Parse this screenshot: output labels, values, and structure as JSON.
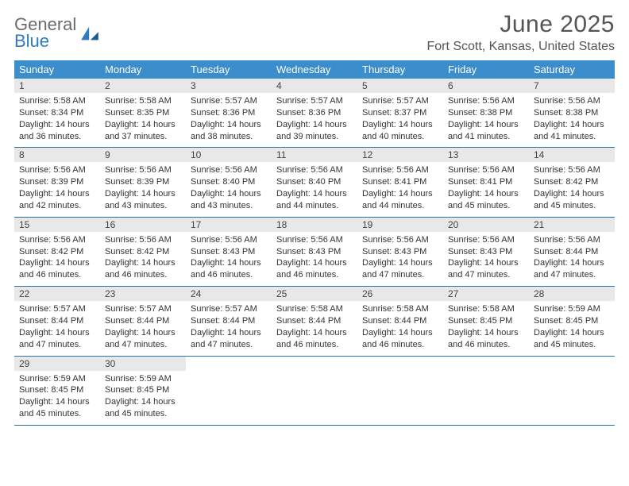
{
  "brand": {
    "general": "General",
    "blue": "Blue"
  },
  "header": {
    "month": "June 2025",
    "location": "Fort Scott, Kansas, United States"
  },
  "colors": {
    "header_bg": "#3c8dcc",
    "header_text": "#ffffff",
    "daynum_bg": "#e8e8e8",
    "rule": "#2f6fa8",
    "logo_blue": "#2f7bbf",
    "logo_gray": "#6b6b6b",
    "text": "#333333"
  },
  "weekdays": [
    "Sunday",
    "Monday",
    "Tuesday",
    "Wednesday",
    "Thursday",
    "Friday",
    "Saturday"
  ],
  "weeks": [
    {
      "nums": [
        "1",
        "2",
        "3",
        "4",
        "5",
        "6",
        "7"
      ],
      "cells": [
        {
          "sunrise": "Sunrise: 5:58 AM",
          "sunset": "Sunset: 8:34 PM",
          "day1": "Daylight: 14 hours",
          "day2": "and 36 minutes."
        },
        {
          "sunrise": "Sunrise: 5:58 AM",
          "sunset": "Sunset: 8:35 PM",
          "day1": "Daylight: 14 hours",
          "day2": "and 37 minutes."
        },
        {
          "sunrise": "Sunrise: 5:57 AM",
          "sunset": "Sunset: 8:36 PM",
          "day1": "Daylight: 14 hours",
          "day2": "and 38 minutes."
        },
        {
          "sunrise": "Sunrise: 5:57 AM",
          "sunset": "Sunset: 8:36 PM",
          "day1": "Daylight: 14 hours",
          "day2": "and 39 minutes."
        },
        {
          "sunrise": "Sunrise: 5:57 AM",
          "sunset": "Sunset: 8:37 PM",
          "day1": "Daylight: 14 hours",
          "day2": "and 40 minutes."
        },
        {
          "sunrise": "Sunrise: 5:56 AM",
          "sunset": "Sunset: 8:38 PM",
          "day1": "Daylight: 14 hours",
          "day2": "and 41 minutes."
        },
        {
          "sunrise": "Sunrise: 5:56 AM",
          "sunset": "Sunset: 8:38 PM",
          "day1": "Daylight: 14 hours",
          "day2": "and 41 minutes."
        }
      ]
    },
    {
      "nums": [
        "8",
        "9",
        "10",
        "11",
        "12",
        "13",
        "14"
      ],
      "cells": [
        {
          "sunrise": "Sunrise: 5:56 AM",
          "sunset": "Sunset: 8:39 PM",
          "day1": "Daylight: 14 hours",
          "day2": "and 42 minutes."
        },
        {
          "sunrise": "Sunrise: 5:56 AM",
          "sunset": "Sunset: 8:39 PM",
          "day1": "Daylight: 14 hours",
          "day2": "and 43 minutes."
        },
        {
          "sunrise": "Sunrise: 5:56 AM",
          "sunset": "Sunset: 8:40 PM",
          "day1": "Daylight: 14 hours",
          "day2": "and 43 minutes."
        },
        {
          "sunrise": "Sunrise: 5:56 AM",
          "sunset": "Sunset: 8:40 PM",
          "day1": "Daylight: 14 hours",
          "day2": "and 44 minutes."
        },
        {
          "sunrise": "Sunrise: 5:56 AM",
          "sunset": "Sunset: 8:41 PM",
          "day1": "Daylight: 14 hours",
          "day2": "and 44 minutes."
        },
        {
          "sunrise": "Sunrise: 5:56 AM",
          "sunset": "Sunset: 8:41 PM",
          "day1": "Daylight: 14 hours",
          "day2": "and 45 minutes."
        },
        {
          "sunrise": "Sunrise: 5:56 AM",
          "sunset": "Sunset: 8:42 PM",
          "day1": "Daylight: 14 hours",
          "day2": "and 45 minutes."
        }
      ]
    },
    {
      "nums": [
        "15",
        "16",
        "17",
        "18",
        "19",
        "20",
        "21"
      ],
      "cells": [
        {
          "sunrise": "Sunrise: 5:56 AM",
          "sunset": "Sunset: 8:42 PM",
          "day1": "Daylight: 14 hours",
          "day2": "and 46 minutes."
        },
        {
          "sunrise": "Sunrise: 5:56 AM",
          "sunset": "Sunset: 8:42 PM",
          "day1": "Daylight: 14 hours",
          "day2": "and 46 minutes."
        },
        {
          "sunrise": "Sunrise: 5:56 AM",
          "sunset": "Sunset: 8:43 PM",
          "day1": "Daylight: 14 hours",
          "day2": "and 46 minutes."
        },
        {
          "sunrise": "Sunrise: 5:56 AM",
          "sunset": "Sunset: 8:43 PM",
          "day1": "Daylight: 14 hours",
          "day2": "and 46 minutes."
        },
        {
          "sunrise": "Sunrise: 5:56 AM",
          "sunset": "Sunset: 8:43 PM",
          "day1": "Daylight: 14 hours",
          "day2": "and 47 minutes."
        },
        {
          "sunrise": "Sunrise: 5:56 AM",
          "sunset": "Sunset: 8:43 PM",
          "day1": "Daylight: 14 hours",
          "day2": "and 47 minutes."
        },
        {
          "sunrise": "Sunrise: 5:56 AM",
          "sunset": "Sunset: 8:44 PM",
          "day1": "Daylight: 14 hours",
          "day2": "and 47 minutes."
        }
      ]
    },
    {
      "nums": [
        "22",
        "23",
        "24",
        "25",
        "26",
        "27",
        "28"
      ],
      "cells": [
        {
          "sunrise": "Sunrise: 5:57 AM",
          "sunset": "Sunset: 8:44 PM",
          "day1": "Daylight: 14 hours",
          "day2": "and 47 minutes."
        },
        {
          "sunrise": "Sunrise: 5:57 AM",
          "sunset": "Sunset: 8:44 PM",
          "day1": "Daylight: 14 hours",
          "day2": "and 47 minutes."
        },
        {
          "sunrise": "Sunrise: 5:57 AM",
          "sunset": "Sunset: 8:44 PM",
          "day1": "Daylight: 14 hours",
          "day2": "and 47 minutes."
        },
        {
          "sunrise": "Sunrise: 5:58 AM",
          "sunset": "Sunset: 8:44 PM",
          "day1": "Daylight: 14 hours",
          "day2": "and 46 minutes."
        },
        {
          "sunrise": "Sunrise: 5:58 AM",
          "sunset": "Sunset: 8:44 PM",
          "day1": "Daylight: 14 hours",
          "day2": "and 46 minutes."
        },
        {
          "sunrise": "Sunrise: 5:58 AM",
          "sunset": "Sunset: 8:45 PM",
          "day1": "Daylight: 14 hours",
          "day2": "and 46 minutes."
        },
        {
          "sunrise": "Sunrise: 5:59 AM",
          "sunset": "Sunset: 8:45 PM",
          "day1": "Daylight: 14 hours",
          "day2": "and 45 minutes."
        }
      ]
    },
    {
      "nums": [
        "29",
        "30",
        "",
        "",
        "",
        "",
        ""
      ],
      "cells": [
        {
          "sunrise": "Sunrise: 5:59 AM",
          "sunset": "Sunset: 8:45 PM",
          "day1": "Daylight: 14 hours",
          "day2": "and 45 minutes."
        },
        {
          "sunrise": "Sunrise: 5:59 AM",
          "sunset": "Sunset: 8:45 PM",
          "day1": "Daylight: 14 hours",
          "day2": "and 45 minutes."
        },
        null,
        null,
        null,
        null,
        null
      ]
    }
  ]
}
